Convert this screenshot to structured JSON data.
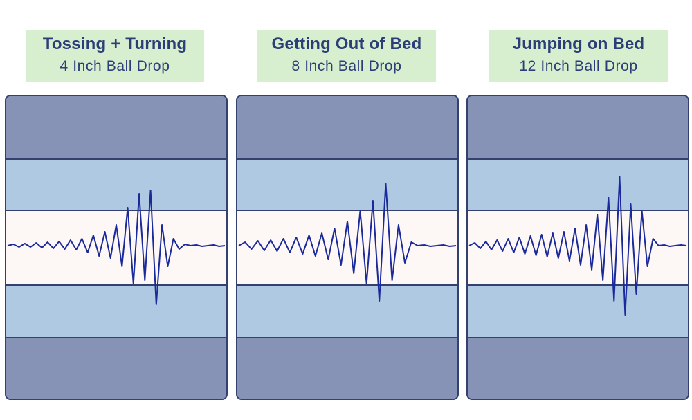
{
  "chart_data": [
    {
      "type": "line",
      "title": "Tossing + Turning",
      "subtitle": "4 Inch Ball Drop",
      "ylim": [
        -1,
        1
      ],
      "series": [
        {
          "values": [
            0.0,
            0.02,
            -0.02,
            0.03,
            -0.02,
            0.04,
            -0.03,
            0.05,
            -0.04,
            0.06,
            -0.05,
            0.08,
            -0.06,
            0.1,
            -0.1,
            0.15,
            -0.15,
            0.2,
            -0.18,
            0.3,
            -0.3,
            0.55,
            -0.55,
            0.75,
            -0.5,
            0.8,
            -0.85,
            0.3,
            -0.3,
            0.1,
            -0.05,
            0.02,
            0.0,
            0.01,
            -0.01,
            0.0,
            0.01,
            -0.01,
            0.0
          ]
        }
      ]
    },
    {
      "type": "line",
      "title": "Getting Out of Bed",
      "subtitle": "8 Inch Ball Drop",
      "ylim": [
        -1,
        1
      ],
      "series": [
        {
          "values": [
            0.0,
            0.05,
            -0.05,
            0.07,
            -0.07,
            0.08,
            -0.08,
            0.1,
            -0.1,
            0.12,
            -0.12,
            0.15,
            -0.15,
            0.18,
            -0.2,
            0.25,
            -0.28,
            0.35,
            -0.4,
            0.5,
            -0.55,
            0.65,
            -0.8,
            0.9,
            -0.5,
            0.3,
            -0.25,
            0.05,
            0.0,
            0.01,
            -0.01,
            0.0,
            0.01,
            -0.01,
            0.0
          ]
        }
      ]
    },
    {
      "type": "line",
      "title": "Jumping on Bed",
      "subtitle": "12 Inch Ball Drop",
      "ylim": [
        -1,
        1
      ],
      "series": [
        {
          "values": [
            0.0,
            0.04,
            -0.04,
            0.06,
            -0.06,
            0.08,
            -0.08,
            0.1,
            -0.1,
            0.12,
            -0.12,
            0.14,
            -0.14,
            0.16,
            -0.16,
            0.18,
            -0.18,
            0.2,
            -0.22,
            0.25,
            -0.28,
            0.3,
            -0.35,
            0.45,
            -0.5,
            0.7,
            -0.8,
            1.0,
            -1.0,
            0.6,
            -0.7,
            0.5,
            -0.3,
            0.1,
            0.0,
            0.01,
            -0.01,
            0.0,
            0.01,
            0.0
          ]
        }
      ]
    }
  ],
  "colors": {
    "line": "#1a2a9a",
    "header_bg": "#d8efcf",
    "title_text": "#2b3e78",
    "outer_band": "#8793b6",
    "mid_band": "#afc9e2",
    "center_band": "#fdf7f6"
  }
}
